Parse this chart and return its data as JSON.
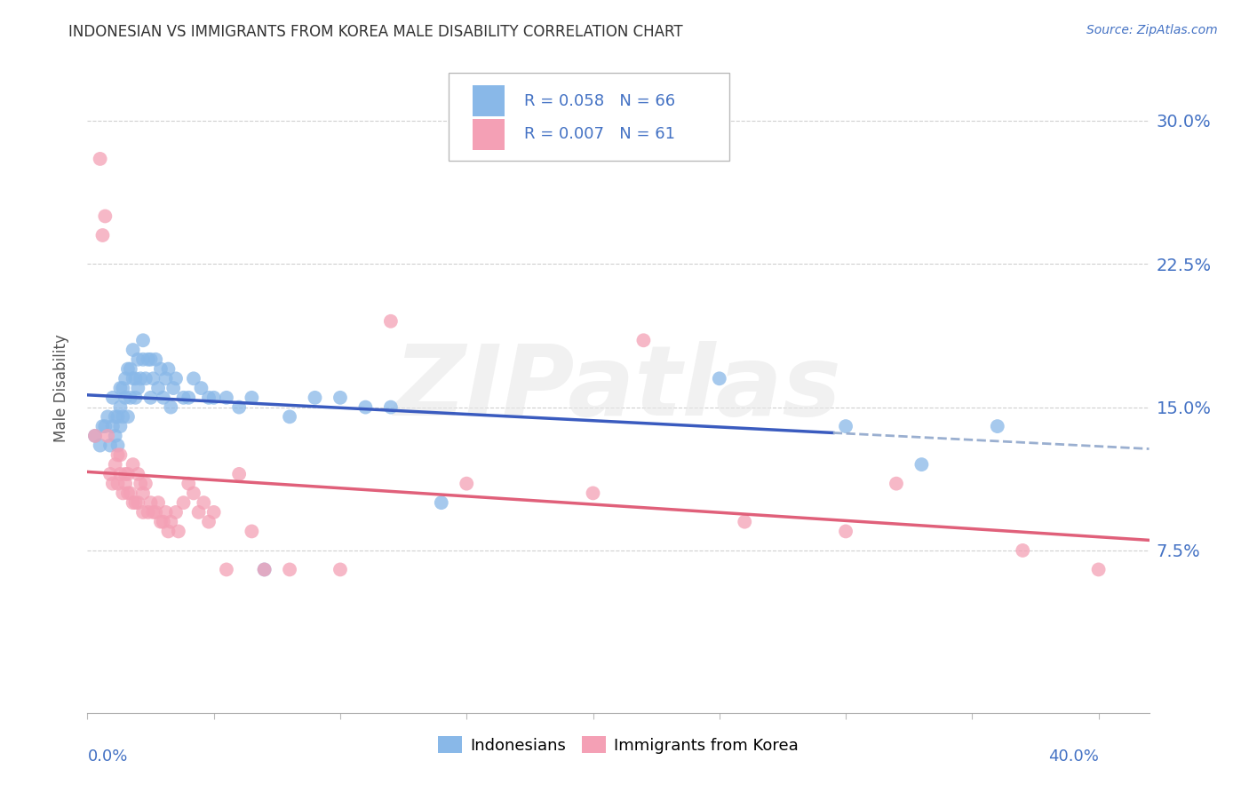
{
  "title": "INDONESIAN VS IMMIGRANTS FROM KOREA MALE DISABILITY CORRELATION CHART",
  "source": "Source: ZipAtlas.com",
  "ylabel": "Male Disability",
  "color_indonesian": "#89b8e8",
  "color_korea": "#f4a0b5",
  "color_blue_line": "#3a5bbf",
  "color_pink_line": "#e0607a",
  "color_blue_text": "#4472c4",
  "watermark": "ZIPatlas",
  "xlim": [
    0.0,
    0.42
  ],
  "ylim": [
    -0.01,
    0.33
  ],
  "yticks": [
    0.075,
    0.15,
    0.225,
    0.3
  ],
  "ytick_labels": [
    "7.5%",
    "15.0%",
    "22.5%",
    "30.0%"
  ],
  "r_indo": "0.058",
  "n_indo": "66",
  "r_kor": "0.007",
  "n_kor": "61",
  "indo_x": [
    0.003,
    0.005,
    0.006,
    0.007,
    0.008,
    0.009,
    0.01,
    0.01,
    0.011,
    0.011,
    0.012,
    0.012,
    0.013,
    0.013,
    0.013,
    0.014,
    0.014,
    0.015,
    0.015,
    0.016,
    0.016,
    0.017,
    0.017,
    0.018,
    0.018,
    0.019,
    0.019,
    0.02,
    0.02,
    0.021,
    0.022,
    0.022,
    0.023,
    0.024,
    0.025,
    0.025,
    0.026,
    0.027,
    0.028,
    0.029,
    0.03,
    0.031,
    0.032,
    0.033,
    0.034,
    0.035,
    0.038,
    0.04,
    0.042,
    0.045,
    0.048,
    0.05,
    0.055,
    0.06,
    0.065,
    0.07,
    0.08,
    0.09,
    0.1,
    0.11,
    0.12,
    0.14,
    0.25,
    0.3,
    0.33,
    0.36
  ],
  "indo_y": [
    0.135,
    0.13,
    0.14,
    0.14,
    0.145,
    0.13,
    0.14,
    0.155,
    0.135,
    0.145,
    0.13,
    0.145,
    0.14,
    0.15,
    0.16,
    0.145,
    0.16,
    0.155,
    0.165,
    0.145,
    0.17,
    0.155,
    0.17,
    0.165,
    0.18,
    0.155,
    0.165,
    0.16,
    0.175,
    0.165,
    0.175,
    0.185,
    0.165,
    0.175,
    0.155,
    0.175,
    0.165,
    0.175,
    0.16,
    0.17,
    0.155,
    0.165,
    0.17,
    0.15,
    0.16,
    0.165,
    0.155,
    0.155,
    0.165,
    0.16,
    0.155,
    0.155,
    0.155,
    0.15,
    0.155,
    0.065,
    0.145,
    0.155,
    0.155,
    0.15,
    0.15,
    0.1,
    0.165,
    0.14,
    0.12,
    0.14
  ],
  "kor_x": [
    0.003,
    0.005,
    0.006,
    0.007,
    0.008,
    0.009,
    0.01,
    0.011,
    0.012,
    0.012,
    0.013,
    0.013,
    0.014,
    0.015,
    0.015,
    0.016,
    0.016,
    0.017,
    0.018,
    0.018,
    0.019,
    0.02,
    0.02,
    0.021,
    0.022,
    0.022,
    0.023,
    0.024,
    0.025,
    0.026,
    0.027,
    0.028,
    0.029,
    0.03,
    0.031,
    0.032,
    0.033,
    0.035,
    0.036,
    0.038,
    0.04,
    0.042,
    0.044,
    0.046,
    0.048,
    0.05,
    0.055,
    0.06,
    0.065,
    0.07,
    0.08,
    0.1,
    0.12,
    0.15,
    0.2,
    0.22,
    0.26,
    0.3,
    0.32,
    0.37,
    0.4
  ],
  "kor_y": [
    0.135,
    0.28,
    0.24,
    0.25,
    0.135,
    0.115,
    0.11,
    0.12,
    0.11,
    0.125,
    0.115,
    0.125,
    0.105,
    0.115,
    0.11,
    0.105,
    0.115,
    0.105,
    0.1,
    0.12,
    0.1,
    0.1,
    0.115,
    0.11,
    0.105,
    0.095,
    0.11,
    0.095,
    0.1,
    0.095,
    0.095,
    0.1,
    0.09,
    0.09,
    0.095,
    0.085,
    0.09,
    0.095,
    0.085,
    0.1,
    0.11,
    0.105,
    0.095,
    0.1,
    0.09,
    0.095,
    0.065,
    0.115,
    0.085,
    0.065,
    0.065,
    0.065,
    0.195,
    0.11,
    0.105,
    0.185,
    0.09,
    0.085,
    0.11,
    0.075,
    0.065
  ]
}
